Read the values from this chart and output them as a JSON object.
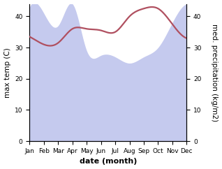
{
  "months": [
    "Jan",
    "Feb",
    "Mar",
    "Apr",
    "May",
    "Jun",
    "Jul",
    "Aug",
    "Sep",
    "Oct",
    "Nov",
    "Dec"
  ],
  "temperature": [
    33.5,
    31.0,
    31.5,
    36.0,
    36.0,
    35.5,
    35.0,
    40.0,
    42.5,
    42.5,
    37.5,
    33.0
  ],
  "precipitation": [
    43.0,
    41.0,
    37.0,
    44.0,
    29.0,
    27.5,
    27.0,
    25.0,
    27.0,
    30.0,
    38.0,
    44.0
  ],
  "temp_color": "#b05060",
  "precip_fill_color": "#c5caee",
  "ylim_left": [
    0,
    44
  ],
  "ylim_right": [
    0,
    44
  ],
  "yticks_left": [
    0,
    10,
    20,
    30,
    40
  ],
  "yticks_right": [
    0,
    10,
    20,
    30,
    40
  ],
  "ylabel_left": "max temp (C)",
  "ylabel_right": "med. precipitation (kg/m2)",
  "xlabel": "date (month)",
  "background_color": "#ffffff",
  "fontsize_ticks": 6.5,
  "fontsize_labels": 7.5,
  "xlabel_fontsize": 8
}
